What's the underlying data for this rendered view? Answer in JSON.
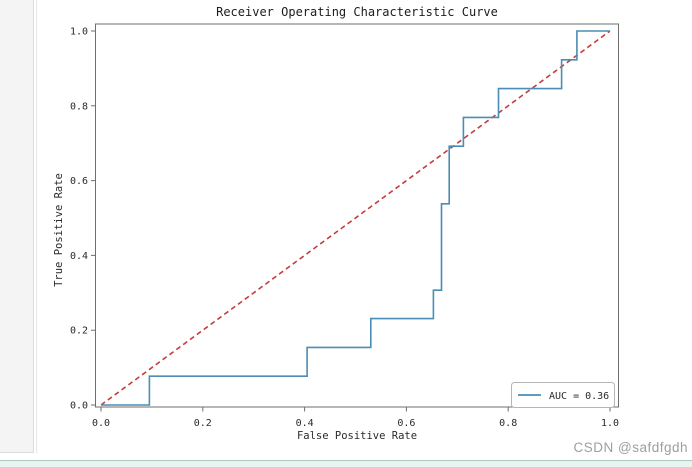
{
  "page": {
    "watermark": "CSDN @safdfgdh"
  },
  "chart_data": {
    "type": "line",
    "title": "Receiver Operating Characteristic Curve",
    "xlabel": "False Positive Rate",
    "ylabel": "True Positive Rate",
    "xlim": [
      0.0,
      1.0
    ],
    "ylim": [
      0.0,
      1.0
    ],
    "grid": false,
    "x_tick_labels": [
      "0.0",
      "0.2",
      "0.4",
      "0.6",
      "0.8",
      "1.0"
    ],
    "y_tick_labels": [
      "0.0",
      "0.2",
      "0.4",
      "0.6",
      "0.8",
      "1.0"
    ],
    "x_ticks": [
      0.0,
      0.2,
      0.4,
      0.6,
      0.8,
      1.0
    ],
    "y_ticks": [
      0.0,
      0.2,
      0.4,
      0.6,
      0.8,
      1.0
    ],
    "auc": 0.36,
    "legend": {
      "position": "lower right",
      "entries": [
        {
          "label": "AUC = 0.36",
          "color": "#4a8db5"
        }
      ]
    },
    "series": [
      {
        "name": "ROC curve",
        "style": "step-solid",
        "color": "#4a8db5",
        "points": [
          [
            0.0,
            0.0
          ],
          [
            0.095,
            0.0
          ],
          [
            0.095,
            0.077
          ],
          [
            0.405,
            0.077
          ],
          [
            0.405,
            0.154
          ],
          [
            0.53,
            0.154
          ],
          [
            0.53,
            0.231
          ],
          [
            0.653,
            0.231
          ],
          [
            0.653,
            0.307
          ],
          [
            0.669,
            0.307
          ],
          [
            0.669,
            0.538
          ],
          [
            0.684,
            0.538
          ],
          [
            0.684,
            0.692
          ],
          [
            0.712,
            0.692
          ],
          [
            0.712,
            0.769
          ],
          [
            0.781,
            0.769
          ],
          [
            0.781,
            0.846
          ],
          [
            0.905,
            0.846
          ],
          [
            0.905,
            0.923
          ],
          [
            0.935,
            0.923
          ],
          [
            0.935,
            1.0
          ],
          [
            1.0,
            1.0
          ]
        ]
      },
      {
        "name": "chance diagonal",
        "style": "dashed",
        "color": "#c43c3c",
        "points": [
          [
            0.0,
            0.0
          ],
          [
            1.0,
            1.0
          ]
        ]
      }
    ]
  }
}
